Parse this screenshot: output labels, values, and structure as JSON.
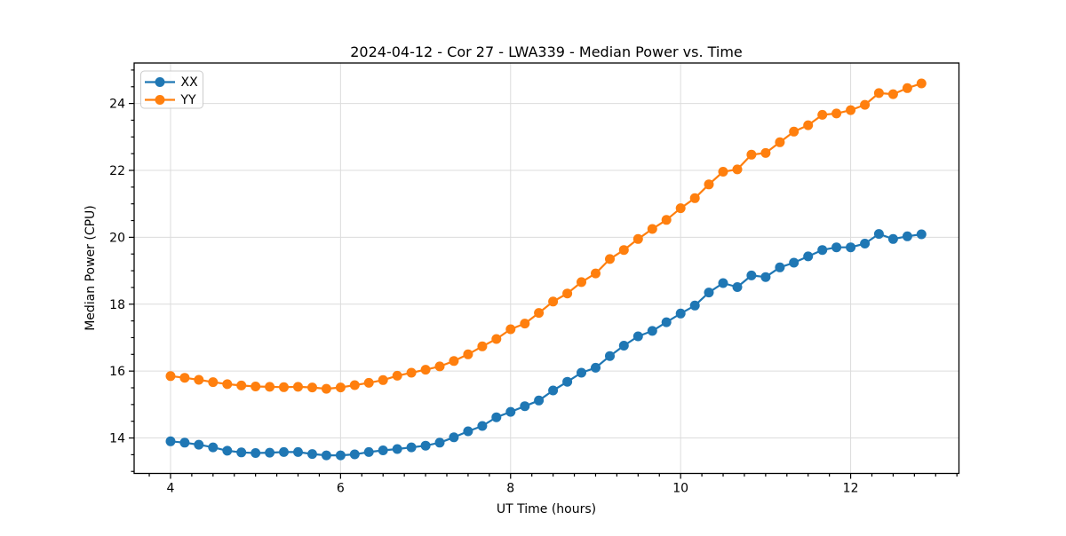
{
  "chart_data": {
    "type": "line",
    "title": "2024-04-12 - Cor 27 - LWA339 - Median Power vs. Time",
    "xlabel": "UT Time (hours)",
    "ylabel": "Median Power (CPU)",
    "xlim": [
      3.572,
      13.274
    ],
    "ylim": [
      12.94,
      25.21
    ],
    "xticks": [
      4,
      6,
      8,
      10,
      12
    ],
    "yticks": [
      14,
      16,
      18,
      20,
      22,
      24
    ],
    "x_minor_step": 0.25,
    "y_minor_step": 0.5,
    "grid": true,
    "legend_position": "upper-left",
    "x": [
      4,
      4.167,
      4.333,
      4.5,
      4.667,
      4.833,
      5,
      5.167,
      5.333,
      5.5,
      5.667,
      5.833,
      6,
      6.167,
      6.333,
      6.5,
      6.667,
      6.833,
      7,
      7.167,
      7.333,
      7.5,
      7.667,
      7.833,
      8,
      8.167,
      8.333,
      8.5,
      8.667,
      8.833,
      9,
      9.167,
      9.333,
      9.5,
      9.667,
      9.833,
      10,
      10.167,
      10.333,
      10.5,
      10.667,
      10.833,
      11,
      11.167,
      11.333,
      11.5,
      11.667,
      11.833,
      12,
      12.167,
      12.333,
      12.5,
      12.667,
      12.833
    ],
    "series": [
      {
        "name": "XX",
        "color": "#1f77b4",
        "marker": "circle",
        "values": [
          13.9,
          13.86,
          13.8,
          13.72,
          13.62,
          13.57,
          13.55,
          13.56,
          13.58,
          13.58,
          13.52,
          13.48,
          13.48,
          13.51,
          13.58,
          13.63,
          13.67,
          13.72,
          13.77,
          13.86,
          14.02,
          14.2,
          14.36,
          14.62,
          14.78,
          14.95,
          15.12,
          15.42,
          15.68,
          15.95,
          16.1,
          16.45,
          16.76,
          17.04,
          17.2,
          17.46,
          17.72,
          17.96,
          18.35,
          18.63,
          18.51,
          18.86,
          18.81,
          19.1,
          19.24,
          19.43,
          19.62,
          19.7,
          19.7,
          19.81,
          20.1,
          19.95,
          20.03,
          20.09
        ]
      },
      {
        "name": "YY",
        "color": "#ff7f0e",
        "marker": "circle",
        "values": [
          15.85,
          15.8,
          15.74,
          15.67,
          15.61,
          15.57,
          15.54,
          15.53,
          15.52,
          15.53,
          15.51,
          15.47,
          15.51,
          15.58,
          15.65,
          15.73,
          15.86,
          15.95,
          16.04,
          16.14,
          16.3,
          16.5,
          16.74,
          16.96,
          17.25,
          17.42,
          17.74,
          18.08,
          18.32,
          18.66,
          18.92,
          19.35,
          19.62,
          19.95,
          20.25,
          20.52,
          20.87,
          21.17,
          21.58,
          21.96,
          22.03,
          22.47,
          22.52,
          22.84,
          23.16,
          23.35,
          23.66,
          23.7,
          23.8,
          23.96,
          24.31,
          24.28,
          24.46,
          24.6
        ]
      }
    ]
  }
}
